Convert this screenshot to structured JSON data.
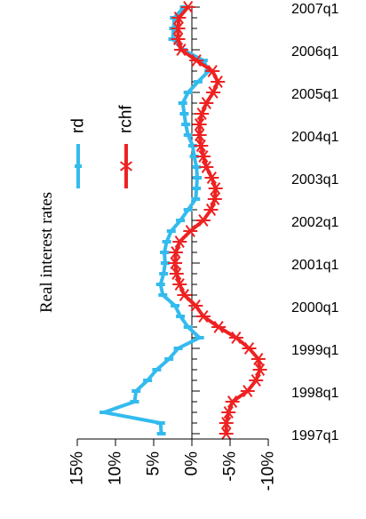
{
  "chart_data": {
    "type": "line",
    "title": "Real interest rates",
    "orientation": "rotated-90-ccw",
    "x_tick_labels": [
      "1997q1",
      "1998q1",
      "1999q1",
      "2000q1",
      "2001q1",
      "2002q1",
      "2003q1",
      "2004q1",
      "2005q1",
      "2006q1",
      "2007q1"
    ],
    "y_tick_labels": [
      "15%",
      "10%",
      "5%",
      "0%",
      "-5%",
      "-10%"
    ],
    "y_ticks": [
      15,
      10,
      5,
      0,
      -5,
      -10
    ],
    "ylim": [
      15,
      -10
    ],
    "xlim": [
      "1997q1",
      "2007q1"
    ],
    "x": [
      "1997q1",
      "1997q2",
      "1997q3",
      "1997q4",
      "1998q1",
      "1998q2",
      "1998q3",
      "1998q4",
      "1999q1",
      "1999q2",
      "1999q3",
      "1999q4",
      "2000q1",
      "2000q2",
      "2000q3",
      "2000q4",
      "2001q1",
      "2001q2",
      "2001q3",
      "2001q4",
      "2002q1",
      "2002q2",
      "2002q3",
      "2002q4",
      "2003q1",
      "2003q2",
      "2003q3",
      "2003q4",
      "2004q1",
      "2004q2",
      "2004q3",
      "2004q4",
      "2005q1",
      "2005q2",
      "2005q3",
      "2005q4",
      "2006q1",
      "2006q2",
      "2006q3",
      "2006q4",
      "2007q1"
    ],
    "legend_position": "top-left",
    "series": [
      {
        "name": "rd",
        "color": "#33BBEE",
        "marker": "tick",
        "values": [
          4.0,
          4.1,
          11.5,
          7.5,
          7.3,
          5.8,
          4.6,
          3.0,
          1.8,
          -1.0,
          0.5,
          1.5,
          2.2,
          3.8,
          4.1,
          3.7,
          3.5,
          3.6,
          3.3,
          2.7,
          1.5,
          0.5,
          -0.5,
          -0.6,
          -0.7,
          -0.6,
          -0.3,
          -0.1,
          0.5,
          0.8,
          1.0,
          1.2,
          0.5,
          -0.8,
          -2.2,
          -1.5,
          1.2,
          2.5,
          2.4,
          2.3,
          1.0
        ]
      },
      {
        "name": "rchf",
        "color": "#EE2222",
        "marker": "asterisk",
        "values": [
          -4.5,
          -4.5,
          -4.8,
          -5.3,
          -7.3,
          -8.4,
          -8.9,
          -8.7,
          -7.5,
          -5.8,
          -3.5,
          -1.5,
          -0.5,
          1.0,
          1.6,
          2.0,
          2.2,
          2.1,
          1.6,
          0.2,
          -1.5,
          -2.5,
          -3.0,
          -3.1,
          -2.6,
          -1.9,
          -1.5,
          -1.2,
          -1.0,
          -1.0,
          -1.3,
          -1.9,
          -2.8,
          -3.4,
          -2.7,
          -0.6,
          1.4,
          1.8,
          1.8,
          1.7,
          0.5
        ]
      }
    ]
  }
}
